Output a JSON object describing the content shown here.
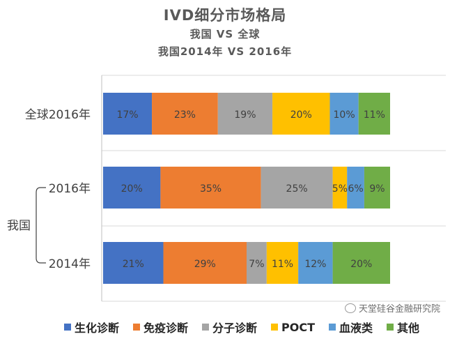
{
  "chart_data": {
    "type": "bar",
    "orientation": "horizontal",
    "stacked": "percent",
    "title": "IVD细分市场格局",
    "subtitle1": "我国 VS 全球",
    "subtitle2": "我国2014年 VS 2016年",
    "group_label": "我国",
    "categories": [
      "全球2016年",
      "2016年",
      "2014年"
    ],
    "series": [
      {
        "name": "生化诊断",
        "color": "#4472C4",
        "values": [
          17,
          20,
          21
        ]
      },
      {
        "name": "免疫诊断",
        "color": "#ED7D31",
        "values": [
          23,
          35,
          29
        ]
      },
      {
        "name": "分子诊断",
        "color": "#A5A5A5",
        "values": [
          19,
          25,
          7
        ]
      },
      {
        "name": "POCT",
        "color": "#FFC000",
        "values": [
          20,
          5,
          11
        ]
      },
      {
        "name": "血液类",
        "color": "#5B9BD5",
        "values": [
          10,
          6,
          12
        ]
      },
      {
        "name": "其他",
        "color": "#70AD47",
        "values": [
          11,
          9,
          20
        ]
      }
    ],
    "data_labels": [
      [
        "17%",
        "23%",
        "19%",
        "20%",
        "10%",
        "11%"
      ],
      [
        "20%",
        "35%",
        "25%",
        "5%",
        "6%",
        "9%"
      ],
      [
        "21%",
        "29%",
        "7%",
        "11%",
        "12%",
        "20%"
      ]
    ],
    "grid": true,
    "legend_position": "bottom"
  },
  "watermark": "天堂硅谷金融研究院"
}
